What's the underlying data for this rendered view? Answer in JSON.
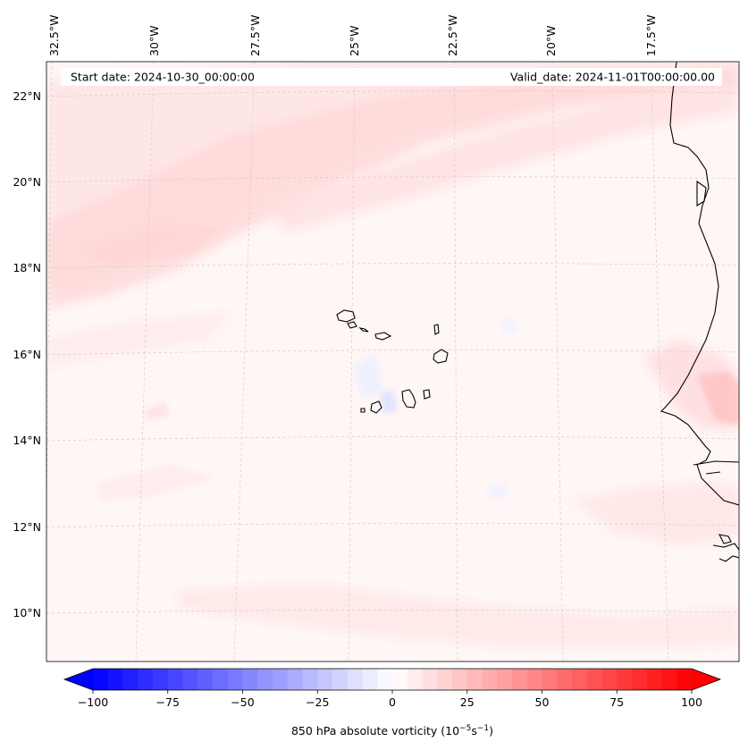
{
  "header": {
    "start_date": "Start date: 2024-10-30_00:00:00",
    "valid_date": "Valid_date: 2024-11-01T00:00:00.00"
  },
  "longitude_labels": [
    "32.5°W",
    "30°W",
    "27.5°W",
    "25°W",
    "22.5°W",
    "20°W",
    "17.5°W"
  ],
  "latitude_labels": [
    "22°N",
    "20°N",
    "18°N",
    "16°N",
    "14°N",
    "12°N",
    "10°N"
  ],
  "colorbar": {
    "ticks": [
      "−100",
      "−75",
      "−50",
      "−25",
      "0",
      "25",
      "50",
      "75",
      "100"
    ],
    "label": "850 hPa absolute vorticity (10",
    "label_exp1": "−5",
    "label_mid": "s",
    "label_exp2": "−1",
    "label_end": ")",
    "min": -100,
    "max": 100,
    "step": 5,
    "color_negative": "#0000ff",
    "color_positive": "#ff0000"
  }
}
